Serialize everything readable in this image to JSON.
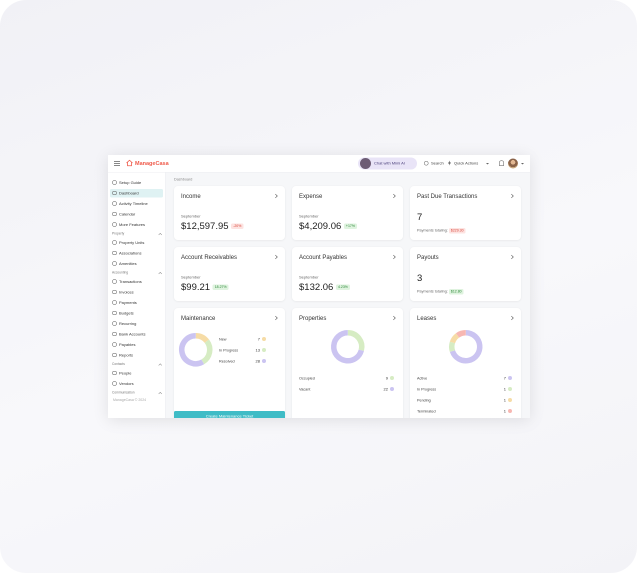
{
  "header": {
    "logo": "ManageCasa",
    "chat_button": "Chat with Mimi AI",
    "search": "Search",
    "quick_actions": "Quick Actions"
  },
  "sidebar": {
    "top": [
      "Setup Guide",
      "Dashboard",
      "Activity Timeline",
      "Calendar",
      "More Features"
    ],
    "sections": [
      {
        "title": "Property",
        "items": [
          "Property Units",
          "Associations",
          "Amenities"
        ]
      },
      {
        "title": "Accounting",
        "items": [
          "Transactions",
          "Invoices",
          "Payments",
          "Budgets",
          "Recurring",
          "Bank Accounts",
          "Payables",
          "Reports"
        ]
      },
      {
        "title": "Contacts",
        "items": [
          "People",
          "Vendors"
        ]
      },
      {
        "title": "Communication",
        "items": []
      }
    ],
    "footer": "ManageCasa © 2024"
  },
  "breadcrumb": "Dashboard",
  "cards": [
    {
      "title": "Income",
      "period": "September",
      "amount": "$12,597.95",
      "change": "-20%",
      "badge_color": "red"
    },
    {
      "title": "Expense",
      "period": "September",
      "amount": "$4,209.06",
      "change": "+17%",
      "badge_color": "green"
    },
    {
      "title": "Past Due Transactions",
      "count": 7,
      "note": "Payments totaling:",
      "total": "$229.30",
      "badge_color": "red"
    },
    {
      "title": "Account Receivables",
      "period": "September",
      "amount": "$99.21",
      "change": "18.27%",
      "badge_color": "green"
    },
    {
      "title": "Account Payables",
      "period": "September",
      "amount": "$132.06",
      "change": "4.23%",
      "badge_color": "green"
    },
    {
      "title": "Payouts",
      "count": 3,
      "note": "Payments totaling:",
      "total": "$12.80",
      "badge_color": "green"
    }
  ],
  "charts": [
    {
      "type": "donut",
      "title": "Maintenance",
      "button": "Create Maintenance Ticket",
      "series": [
        {
          "name": "New",
          "value": 7,
          "color": "#f6dca6"
        },
        {
          "name": "In Progress",
          "value": 13,
          "color": "#d6ecc3"
        },
        {
          "name": "Resolved",
          "value": 28,
          "color": "#cbc4f1"
        }
      ]
    },
    {
      "type": "donut",
      "title": "Properties",
      "series": [
        {
          "name": "Occupied",
          "value": 9,
          "color": "#d6ecc3"
        },
        {
          "name": "Vacant",
          "value": 22,
          "color": "#cbc4f1"
        }
      ]
    },
    {
      "type": "donut",
      "title": "Leases",
      "series": [
        {
          "name": "Active",
          "value": 7,
          "color": "#cbc4f1"
        },
        {
          "name": "In Progress",
          "value": 1,
          "color": "#d6ecc3"
        },
        {
          "name": "Pending",
          "value": 1,
          "color": "#f6dca6"
        },
        {
          "name": "Terminated",
          "value": 1,
          "color": "#f7b7b2"
        }
      ]
    }
  ]
}
